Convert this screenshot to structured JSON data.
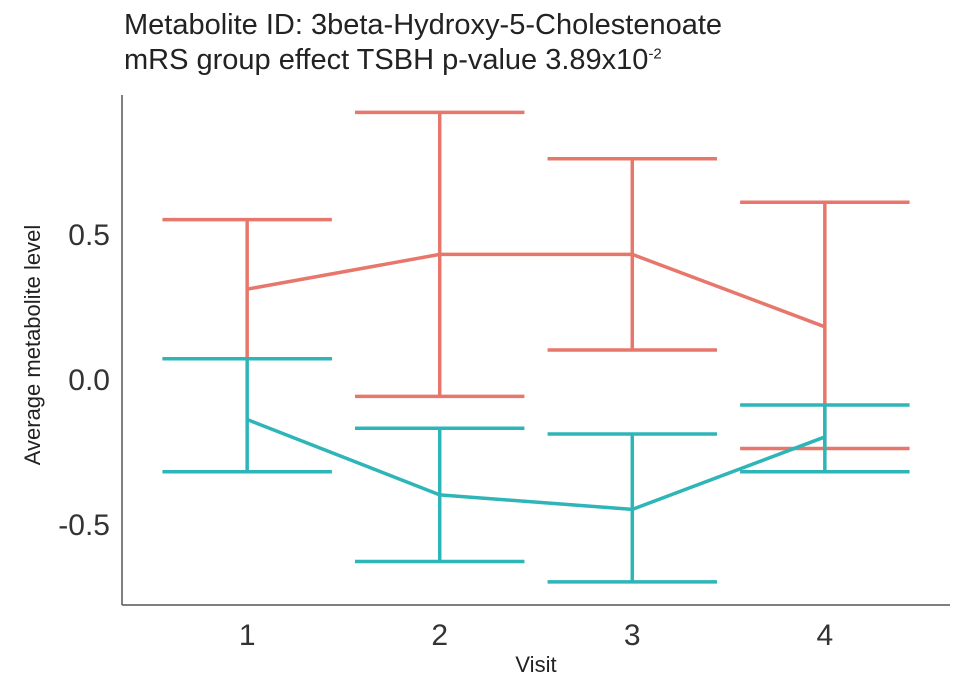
{
  "chart_data": {
    "type": "line",
    "title_line1": "Metabolite ID: 3beta-Hydroxy-5-Cholestenoate",
    "title_line2_prefix": "mRS group effect TSBH p-value 3.89x10",
    "title_line2_exponent": "-2",
    "xlabel": "Visit",
    "ylabel": "Average metabolite level",
    "categories": [
      "1",
      "2",
      "3",
      "4"
    ],
    "x": [
      1,
      2,
      3,
      4
    ],
    "xlim": [
      0.35,
      4.65
    ],
    "ylim": [
      -0.78,
      0.98
    ],
    "yticks": [
      0.5,
      0.0,
      -0.5
    ],
    "ytick_labels": [
      "0.5",
      "0.0",
      "-0.5"
    ],
    "grid": false,
    "series": [
      {
        "name": "group-red",
        "color": "#E8776B",
        "values": [
          0.31,
          0.43,
          0.43,
          0.18
        ],
        "lower": [
          0.07,
          -0.06,
          0.1,
          -0.24
        ],
        "upper": [
          0.55,
          0.92,
          0.76,
          0.61
        ]
      },
      {
        "name": "group-teal",
        "color": "#2EB5B8",
        "values": [
          -0.14,
          -0.4,
          -0.45,
          -0.2
        ],
        "lower": [
          -0.32,
          -0.63,
          -0.7,
          -0.32
        ],
        "upper": [
          0.07,
          -0.17,
          -0.19,
          -0.09
        ]
      }
    ]
  }
}
